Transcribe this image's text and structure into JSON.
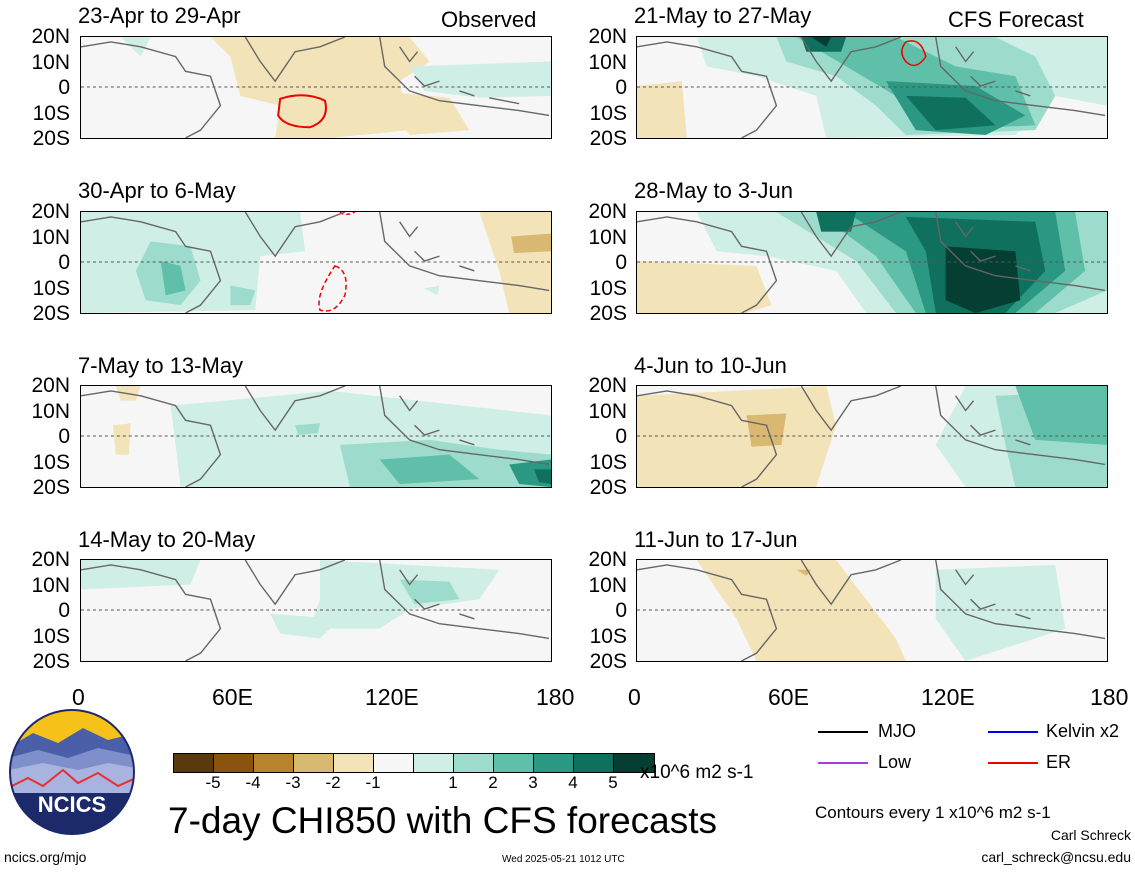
{
  "tags": {
    "observed": "Observed",
    "forecast": "CFS Forecast"
  },
  "lat_labels": [
    "20N",
    "10N",
    "0",
    "10S",
    "20S"
  ],
  "lon_labels": [
    "0",
    "60E",
    "120E",
    "180"
  ],
  "panels_left": [
    {
      "title": "23-Apr to 29-Apr"
    },
    {
      "title": "30-Apr to 6-May"
    },
    {
      "title": "7-May to 13-May"
    },
    {
      "title": "14-May to 20-May"
    }
  ],
  "panels_right": [
    {
      "title": "21-May to 27-May"
    },
    {
      "title": "28-May to 3-Jun"
    },
    {
      "title": "4-Jun to 10-Jun"
    },
    {
      "title": "11-Jun to 17-Jun"
    }
  ],
  "colorbar": {
    "colors": [
      "#5a3a0c",
      "#8a5410",
      "#b8822f",
      "#d9b872",
      "#f3e3b8",
      "#f7f7f7",
      "#cfeee6",
      "#9ddccc",
      "#5fbfa8",
      "#2b9883",
      "#10705e",
      "#053f33"
    ],
    "ticks": [
      "-5",
      "-4",
      "-3",
      "-2",
      "-1",
      "1",
      "2",
      "3",
      "4",
      "5"
    ],
    "units": "x10^6 m2 s-1"
  },
  "legend": {
    "mjo": {
      "label": "MJO",
      "color": "#000000"
    },
    "kelvin": {
      "label": "Kelvin x2",
      "color": "#0000ee"
    },
    "low": {
      "label": "Low",
      "color": "#a040e0"
    },
    "er": {
      "label": "ER",
      "color": "#ee0000"
    }
  },
  "main_title": "7-day CHI850 with CFS forecasts",
  "contours_note": "Contours every 1 x10^6 m2 s-1",
  "author": "Carl Schreck",
  "email": "carl_schreck@ncsu.edu",
  "site": "ncics.org/mjo",
  "timestamp": "Wed 2025-05-21 1012 UTC",
  "logo_text": "NCICS"
}
